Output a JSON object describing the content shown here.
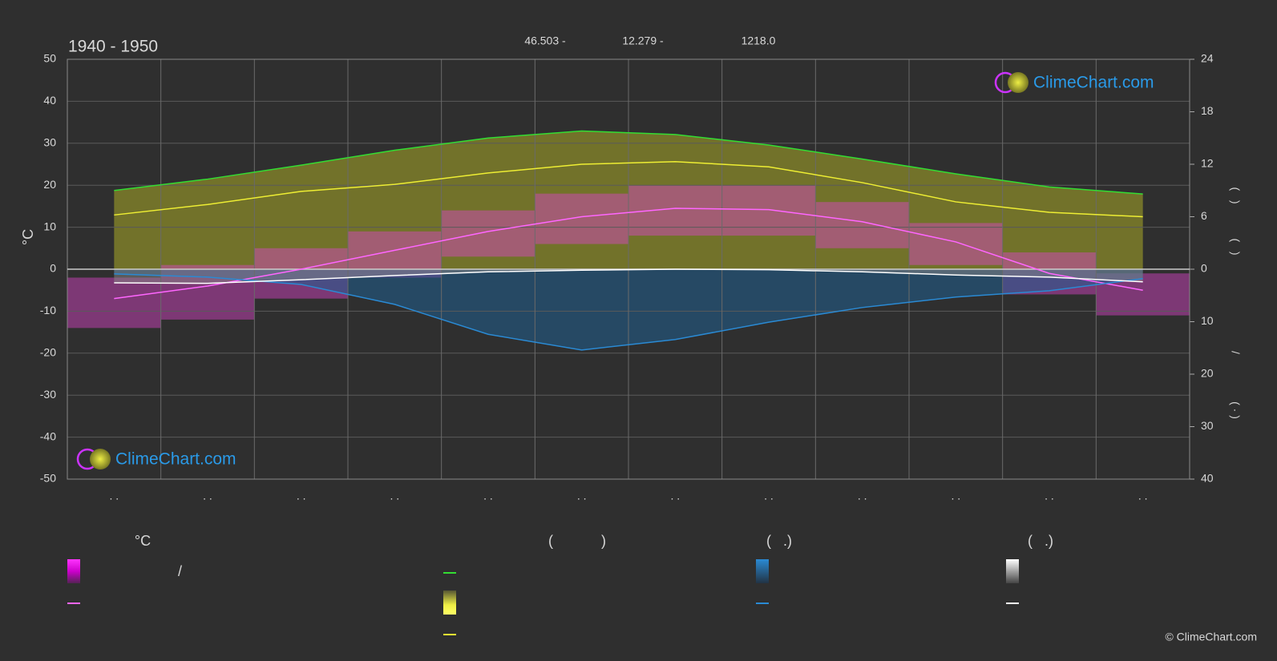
{
  "chart_data": {
    "type": "line",
    "title": "1940 - 1950",
    "subtitle_parts": [
      "46.503 -",
      "12.279 -",
      "1218.0"
    ],
    "ylabel": "°C",
    "y2label_parts": [
      "(   )",
      "(   )",
      "/",
      "( · )"
    ],
    "categories": [
      ". .",
      ". .",
      ". .",
      ". .",
      ". .",
      ". .",
      ". .",
      ". .",
      ". .",
      ". .",
      ". .",
      ". ."
    ],
    "ylim": [
      -50,
      50
    ],
    "yticks": [
      -50,
      -40,
      -30,
      -20,
      -10,
      0,
      10,
      20,
      30,
      40,
      50
    ],
    "y2lim": [
      0,
      24
    ],
    "y2ticks": [
      0,
      6,
      12,
      18,
      24
    ],
    "y3lim": [
      0,
      40
    ],
    "y3ticks": [
      10,
      20,
      30,
      40
    ],
    "grid": true,
    "series": [
      {
        "color": "#33dd33",
        "axis": "y2",
        "values": [
          9.0,
          10.3,
          11.9,
          13.6,
          15.0,
          15.8,
          15.4,
          14.2,
          12.6,
          10.9,
          9.4,
          8.6
        ]
      },
      {
        "color": "#eeee33",
        "axis": "y2",
        "values": [
          6.2,
          7.4,
          8.9,
          9.7,
          11.0,
          12.0,
          12.3,
          11.7,
          9.9,
          7.7,
          6.5,
          6.0
        ]
      },
      {
        "color": "#ff66ff",
        "axis": "y",
        "values": [
          -7,
          -4,
          0,
          4.5,
          9,
          12.5,
          14.5,
          14.2,
          11.3,
          6.5,
          -1,
          -5
        ]
      },
      {
        "color": "#dd44cc",
        "axis": "y",
        "band": "max",
        "values": [
          -2,
          1,
          5,
          9,
          14,
          18,
          20,
          20,
          16,
          11,
          4,
          -1
        ]
      },
      {
        "color": "#dd44cc",
        "axis": "y",
        "band": "min",
        "values": [
          -14,
          -12,
          -7,
          -2,
          3,
          6,
          8,
          8,
          5,
          1,
          -6,
          -11
        ]
      },
      {
        "color": "#2a8ad4",
        "axis": "y3",
        "values": [
          0.9,
          1.5,
          2.9,
          6.7,
          12.4,
          15.4,
          13.4,
          10.1,
          7.3,
          5.3,
          4.1,
          1.8
        ]
      },
      {
        "color": "#ffffff",
        "axis": "y3",
        "values": [
          2.6,
          2.7,
          2.0,
          1.2,
          0.5,
          0.2,
          0,
          0.1,
          0.5,
          1.1,
          1.5,
          2.4
        ]
      }
    ]
  },
  "legend": {
    "headings": [
      "°C",
      "(            )",
      "(   .)",
      "(   .)"
    ],
    "texts": [
      "/"
    ]
  },
  "logos": [
    "ClimeChart.com",
    "ClimeChart.com"
  ],
  "copyright": "© ClimeChart.com"
}
